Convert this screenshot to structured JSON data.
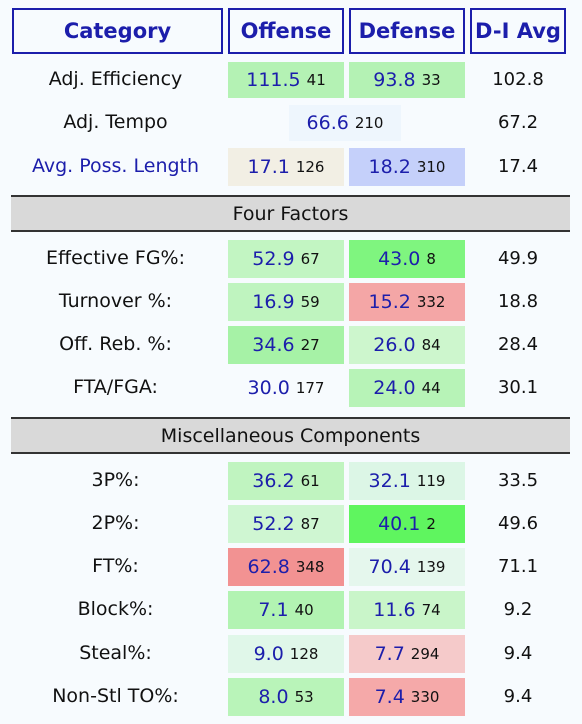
{
  "headers": {
    "category": "Category",
    "offense": "Offense",
    "defense": "Defense",
    "avg": "D-I Avg"
  },
  "rows": [
    {
      "label": "Adj. Efficiency",
      "off": "111.5",
      "off_rank": "41",
      "def": "93.8",
      "def_rank": "33",
      "avg": "102.8",
      "off_color": "#b4f2b4",
      "def_color": "#b4f2b4"
    },
    {
      "label": "Adj. Tempo",
      "combined": "66.6",
      "combined_rank": "210",
      "avg": "67.2",
      "combined_color": "#eef6fd"
    },
    {
      "label": "Avg. Poss. Length",
      "off": "17.1",
      "off_rank": "126",
      "def": "18.2",
      "def_rank": "310",
      "avg": "17.4",
      "off_color": "#f2efe4",
      "def_color": "#c5d0fa"
    },
    {
      "label": "Effective FG%:",
      "off": "52.9",
      "off_rank": "67",
      "def": "43.0",
      "def_rank": "8",
      "avg": "49.9",
      "off_color": "#c2f5c2",
      "def_color": "#7ff57f"
    },
    {
      "label": "Turnover %:",
      "off": "16.9",
      "off_rank": "59",
      "def": "15.2",
      "def_rank": "332",
      "avg": "18.8",
      "off_color": "#bff4bf",
      "def_color": "#f4a6a6"
    },
    {
      "label": "Off. Reb. %:",
      "off": "34.6",
      "off_rank": "27",
      "def": "26.0",
      "def_rank": "84",
      "avg": "28.4",
      "off_color": "#a6f2a6",
      "def_color": "#cdf6cd"
    },
    {
      "label": "FTA/FGA:",
      "off": "30.0",
      "off_rank": "177",
      "def": "24.0",
      "def_rank": "44",
      "avg": "30.1",
      "off_color": "#f7fbfe",
      "def_color": "#b7f3b7"
    },
    {
      "label": "3P%:",
      "off": "36.2",
      "off_rank": "61",
      "def": "32.1",
      "def_rank": "119",
      "avg": "33.5",
      "off_color": "#c0f4c0",
      "def_color": "#dcf6e6"
    },
    {
      "label": "2P%:",
      "off": "52.2",
      "off_rank": "87",
      "def": "40.1",
      "def_rank": "2",
      "avg": "49.6",
      "off_color": "#cff6d2",
      "def_color": "#5ff55f"
    },
    {
      "label": "FT%:",
      "off": "62.8",
      "off_rank": "348",
      "def": "70.4",
      "def_rank": "139",
      "avg": "71.1",
      "off_color": "#f29292",
      "def_color": "#e5f7ed"
    },
    {
      "label": "Block%:",
      "off": "7.1",
      "off_rank": "40",
      "def": "11.6",
      "def_rank": "74",
      "avg": "9.2",
      "off_color": "#b2f3b2",
      "def_color": "#c9f5c9"
    },
    {
      "label": "Steal%:",
      "off": "9.0",
      "off_rank": "128",
      "def": "7.7",
      "def_rank": "294",
      "avg": "9.4",
      "off_color": "#e0f7e9",
      "def_color": "#f5caca"
    },
    {
      "label": "Non-Stl TO%:",
      "off": "8.0",
      "off_rank": "53",
      "def": "7.4",
      "def_rank": "330",
      "avg": "9.4",
      "off_color": "#b9f4b9",
      "def_color": "#f5a9a9"
    }
  ],
  "sections": {
    "four_factors": "Four Factors",
    "misc": "Miscellaneous Components"
  },
  "colors": {
    "header_border": "#1c1eab",
    "value_text": "#1c1eab",
    "section_bg": "#d9d9d9"
  }
}
